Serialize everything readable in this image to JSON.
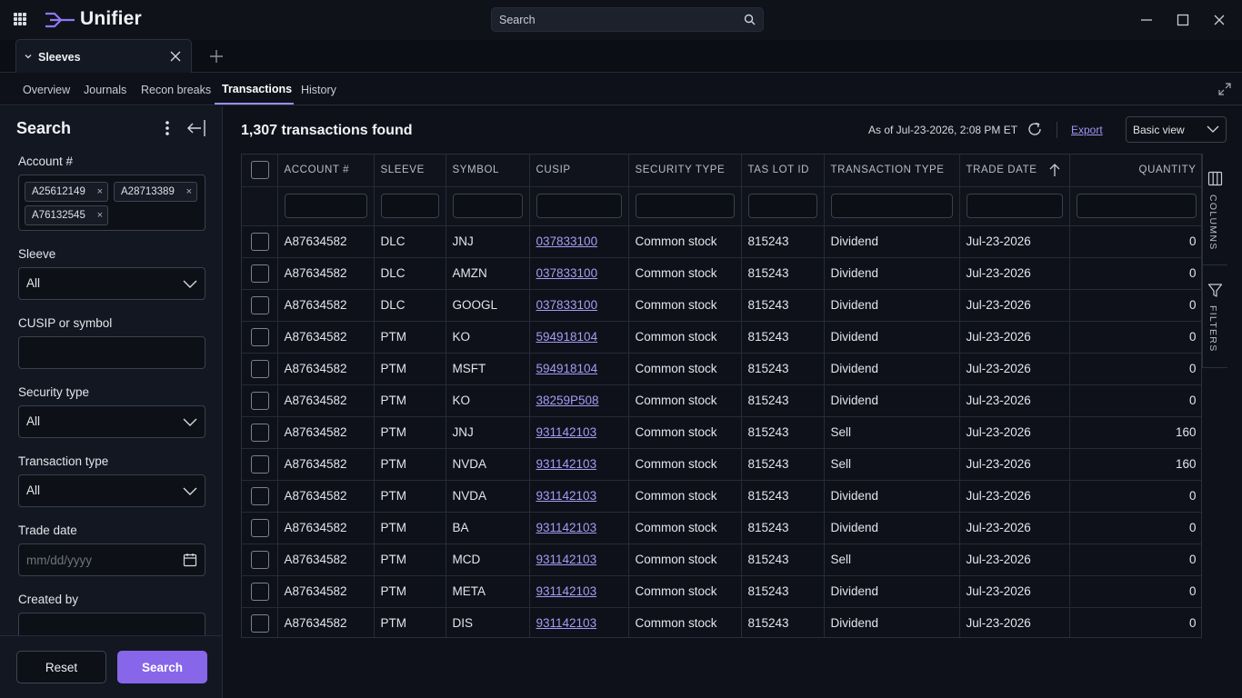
{
  "app": {
    "name": "Unifier",
    "search_placeholder": "Search"
  },
  "tabs": {
    "doc_tab_label": "Sleeves"
  },
  "subnav": [
    "Overview",
    "Journals",
    "Recon breaks",
    "Transactions",
    "History"
  ],
  "sidebar": {
    "title": "Search",
    "account_label": "Account #",
    "accounts": [
      "A25612149",
      "A28713389",
      "A76132545"
    ],
    "chip_remove": "×",
    "sleeve_label": "Sleeve",
    "sleeve_value": "All",
    "cusip_label": "CUSIP or symbol",
    "cusip_value": "",
    "security_type_label": "Security type",
    "security_type_value": "All",
    "transaction_type_label": "Transaction type",
    "transaction_type_value": "All",
    "trade_date_label": "Trade date",
    "trade_date_placeholder": "mm/dd/yyyy",
    "created_by_label": "Created by",
    "reset_label": "Reset",
    "search_label": "Search"
  },
  "main": {
    "result_count": "1,307 transactions found",
    "as_of": "As of Jul-23-2026, 2:08 PM ET",
    "export_label": "Export",
    "view_value": "Basic view",
    "columns": [
      "ACCOUNT #",
      "SLEEVE",
      "SYMBOL",
      "CUSIP",
      "SECURITY TYPE",
      "TAS LOT ID",
      "TRANSACTION TYPE",
      "TRADE DATE",
      "QUANTITY"
    ],
    "rail_columns": "COLUMNS",
    "rail_filters": "FILTERS",
    "rows": [
      [
        "A87634582",
        "DLC",
        "JNJ",
        "037833100",
        "Common stock",
        "815243",
        "Dividend",
        "Jul-23-2026",
        "0"
      ],
      [
        "A87634582",
        "DLC",
        "AMZN",
        "037833100",
        "Common stock",
        "815243",
        "Dividend",
        "Jul-23-2026",
        "0"
      ],
      [
        "A87634582",
        "DLC",
        "GOOGL",
        "037833100",
        "Common stock",
        "815243",
        "Dividend",
        "Jul-23-2026",
        "0"
      ],
      [
        "A87634582",
        "PTM",
        "KO",
        "594918104",
        "Common stock",
        "815243",
        "Dividend",
        "Jul-23-2026",
        "0"
      ],
      [
        "A87634582",
        "PTM",
        "MSFT",
        "594918104",
        "Common stock",
        "815243",
        "Dividend",
        "Jul-23-2026",
        "0"
      ],
      [
        "A87634582",
        "PTM",
        "KO",
        "38259P508",
        "Common stock",
        "815243",
        "Dividend",
        "Jul-23-2026",
        "0"
      ],
      [
        "A87634582",
        "PTM",
        "JNJ",
        "931142103",
        "Common stock",
        "815243",
        "Sell",
        "Jul-23-2026",
        "160"
      ],
      [
        "A87634582",
        "PTM",
        "NVDA",
        "931142103",
        "Common stock",
        "815243",
        "Sell",
        "Jul-23-2026",
        "160"
      ],
      [
        "A87634582",
        "PTM",
        "NVDA",
        "931142103",
        "Common stock",
        "815243",
        "Dividend",
        "Jul-23-2026",
        "0"
      ],
      [
        "A87634582",
        "PTM",
        "BA",
        "931142103",
        "Common stock",
        "815243",
        "Dividend",
        "Jul-23-2026",
        "0"
      ],
      [
        "A87634582",
        "PTM",
        "MCD",
        "931142103",
        "Common stock",
        "815243",
        "Sell",
        "Jul-23-2026",
        "0"
      ],
      [
        "A87634582",
        "PTM",
        "META",
        "931142103",
        "Common stock",
        "815243",
        "Dividend",
        "Jul-23-2026",
        "0"
      ],
      [
        "A87634582",
        "PTM",
        "DIS",
        "931142103",
        "Common stock",
        "815243",
        "Dividend",
        "Jul-23-2026",
        "0"
      ]
    ]
  },
  "colors": {
    "accent": "#8766ea",
    "link": "#a99af6",
    "background": "#0e1119"
  }
}
